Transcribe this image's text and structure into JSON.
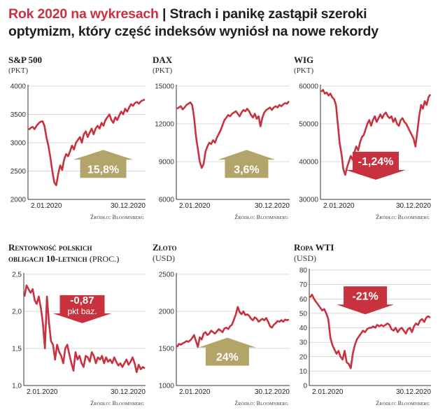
{
  "headline": {
    "part1": "Rok 2020 na wykresach",
    "separator": " | ",
    "part2": "Strach i panikę zastąpił szeroki optymizm, który część indeksów wyniósł na nowe rekordy"
  },
  "colors": {
    "line": "#c8323f",
    "up_arrow": "#b3a46a",
    "down_arrow": "#c8323f",
    "grid": "#b5b5b5",
    "axis": "#333333"
  },
  "chart_data": [
    {
      "id": "sp500",
      "type": "line",
      "title": "S&P 500",
      "unit": "(PKT)",
      "unit_style": "plain",
      "ylim": [
        2000,
        4000
      ],
      "yticks": [
        "4000",
        "3500",
        "3000",
        "2500",
        "2000"
      ],
      "ytick_values": [
        4000,
        3500,
        3000,
        2500,
        2000
      ],
      "x_start": "2.01.2020",
      "x_end": "30.12.2020",
      "badge": {
        "label": "15,8%",
        "label2": "",
        "direction": "up"
      },
      "source": "Źródło: Bloomnberg",
      "series": [
        {
          "name": "S&P 500",
          "values": [
            3230,
            3260,
            3280,
            3240,
            3300,
            3340,
            3370,
            3380,
            3300,
            3100,
            2950,
            2750,
            2500,
            2300,
            2250,
            2450,
            2600,
            2520,
            2700,
            2800,
            2760,
            2850,
            2950,
            2880,
            3000,
            3050,
            3100,
            3000,
            3150,
            3200,
            3100,
            3180,
            3250,
            3150,
            3250,
            3300,
            3250,
            3350,
            3300,
            3400,
            3450,
            3500,
            3400,
            3350,
            3450,
            3400,
            3480,
            3550,
            3500,
            3600,
            3550,
            3620,
            3680,
            3650,
            3700,
            3720,
            3690,
            3730,
            3750,
            3760
          ]
        }
      ]
    },
    {
      "id": "dax",
      "type": "line",
      "title": "DAX",
      "unit": "(PKT)",
      "unit_style": "plain",
      "ylim": [
        6000,
        15000
      ],
      "yticks": [
        "15000",
        "12000",
        "9000",
        "6000"
      ],
      "ytick_values": [
        15000,
        12000,
        9000,
        6000
      ],
      "x_start": "2.01.2020",
      "x_end": "30.12.2020",
      "badge": {
        "label": "3,6%",
        "label2": "",
        "direction": "up"
      },
      "source": "Źródło: Bloomnberg",
      "series": [
        {
          "name": "DAX",
          "values": [
            13200,
            13300,
            13400,
            13150,
            13300,
            13500,
            13600,
            13700,
            13500,
            12500,
            11000,
            10000,
            9000,
            8500,
            8800,
            9800,
            10200,
            10500,
            10400,
            10700,
            10500,
            10900,
            11200,
            11500,
            11900,
            12300,
            12500,
            12700,
            12600,
            12800,
            12900,
            13000,
            12800,
            12600,
            12900,
            13100,
            13000,
            13200,
            13000,
            12700,
            12500,
            12800,
            12400,
            12600,
            11800,
            12500,
            12900,
            13100,
            13200,
            13300,
            13100,
            13300,
            13400,
            13300,
            13500,
            13400,
            13550,
            13650,
            13600,
            13800
          ]
        }
      ]
    },
    {
      "id": "wig",
      "type": "line",
      "title": "WIG",
      "unit": "(PKT)",
      "unit_style": "plain",
      "ylim": [
        30000,
        60000
      ],
      "yticks": [
        "60000",
        "50000",
        "40000",
        "30000"
      ],
      "ytick_values": [
        60000,
        50000,
        40000,
        30000
      ],
      "x_start": "2.01.2020",
      "x_end": "30.12.2020",
      "badge": {
        "label": "-1,24%",
        "label2": "",
        "direction": "down"
      },
      "source": "Źródło: Bloomnberg",
      "series": [
        {
          "name": "WIG",
          "values": [
            58500,
            59000,
            58000,
            58300,
            57500,
            58000,
            57000,
            56500,
            55000,
            50000,
            45000,
            42000,
            38000,
            36500,
            38500,
            40000,
            41500,
            40500,
            42500,
            44000,
            43000,
            45000,
            46500,
            47000,
            48500,
            50000,
            51000,
            49500,
            51000,
            52000,
            50500,
            51500,
            52500,
            51500,
            52500,
            53000,
            52000,
            51500,
            52000,
            50500,
            51500,
            50000,
            49500,
            51000,
            51500,
            50500,
            50000,
            49000,
            48000,
            47000,
            46000,
            44000,
            48000,
            52000,
            55000,
            54000,
            56000,
            55000,
            57000,
            57800
          ]
        }
      ]
    },
    {
      "id": "bonds",
      "type": "line",
      "title_main": "Rentowność polskich",
      "title_line2": "obligacji 10-letnich",
      "unit": "(PROC.)",
      "unit_style": "inline",
      "ylim": [
        1.0,
        2.5
      ],
      "yticks": [
        "2,5",
        "2,0",
        "1,5",
        "1,0"
      ],
      "ytick_values": [
        2.5,
        2.0,
        1.5,
        1.0
      ],
      "x_start": "2.01.2020",
      "x_end": "30.12.2020",
      "badge": {
        "label": "-0,87",
        "label2": "pkt baz.",
        "direction": "down"
      },
      "source": "Źródło: Bloomnberg",
      "series": [
        {
          "name": "Rentowność",
          "values": [
            2.2,
            2.35,
            2.3,
            2.25,
            2.3,
            2.15,
            2.1,
            2.2,
            2.05,
            1.85,
            1.5,
            2.2,
            1.85,
            1.6,
            1.55,
            1.35,
            1.55,
            1.45,
            1.4,
            1.3,
            1.5,
            1.55,
            1.42,
            1.3,
            1.2,
            1.45,
            1.35,
            1.4,
            1.3,
            1.25,
            1.4,
            1.38,
            1.32,
            1.45,
            1.4,
            1.3,
            1.38,
            1.35,
            1.4,
            1.3,
            1.38,
            1.32,
            1.35,
            1.3,
            1.38,
            1.32,
            1.27,
            1.3,
            1.25,
            1.3,
            1.35,
            1.28,
            1.32,
            1.38,
            1.3,
            1.18,
            1.28,
            1.22,
            1.25,
            1.23
          ]
        }
      ]
    },
    {
      "id": "zloto",
      "type": "line",
      "title": "Złoto",
      "unit": "(USD)",
      "unit_style": "sc",
      "ylim": [
        1000,
        2500
      ],
      "yticks": [
        "2500",
        "2000",
        "1500",
        "1000"
      ],
      "ytick_values": [
        2500,
        2000,
        1500,
        1000
      ],
      "x_start": "2.01.2020",
      "x_end": "30.12.2020",
      "badge": {
        "label": "24%",
        "label2": "",
        "direction": "up"
      },
      "source": "Źródło: Bloomnberg",
      "series": [
        {
          "name": "Złoto",
          "values": [
            1520,
            1560,
            1550,
            1570,
            1580,
            1600,
            1590,
            1610,
            1640,
            1680,
            1600,
            1520,
            1650,
            1620,
            1700,
            1720,
            1680,
            1700,
            1740,
            1720,
            1700,
            1730,
            1760,
            1740,
            1720,
            1770,
            1780,
            1760,
            1800,
            1820,
            1890,
            1960,
            2060,
            1990,
            1960,
            2000,
            1950,
            1960,
            1940,
            1900,
            1880,
            1920,
            1900,
            1860,
            1880,
            1900,
            1880,
            1910,
            1860,
            1800,
            1780,
            1820,
            1840,
            1870,
            1860,
            1880,
            1860,
            1890,
            1880,
            1890
          ]
        }
      ]
    },
    {
      "id": "wti",
      "type": "line",
      "title_main": "Ropa",
      "title_tail": " WTI",
      "unit": "(USD)",
      "unit_style": "sc",
      "ylim": [
        0,
        80
      ],
      "yticks": [
        "80",
        "70",
        "60",
        "50",
        "40",
        "30",
        "20",
        "10",
        "0"
      ],
      "ytick_values": [
        80,
        70,
        60,
        50,
        40,
        30,
        20,
        10,
        0
      ],
      "x_start": "2.01.2020",
      "x_end": "30.12.2020",
      "badge": {
        "label": "-21%",
        "label2": "",
        "direction": "down"
      },
      "source": "Źródło: Bloomnberg",
      "series": [
        {
          "name": "WTI",
          "values": [
            61,
            63,
            60,
            58,
            56,
            54,
            52,
            53,
            50,
            46,
            33,
            28,
            25,
            22,
            24,
            20,
            18,
            24,
            16,
            15,
            12,
            22,
            28,
            32,
            34,
            36,
            38,
            37,
            39,
            40,
            40,
            41,
            40,
            42,
            41,
            42,
            41,
            42,
            43,
            42,
            39,
            38,
            40,
            37,
            39,
            40,
            38,
            36,
            39,
            40,
            37,
            41,
            43,
            42,
            45,
            46,
            44,
            47,
            48,
            47
          ]
        }
      ]
    }
  ]
}
